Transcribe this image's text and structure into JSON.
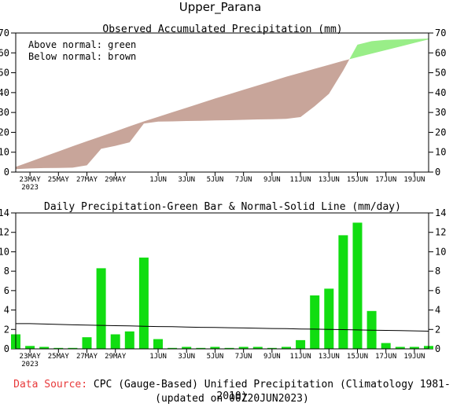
{
  "title": "Upper_Parana",
  "colors": {
    "above_normal": "#99ee88",
    "below_normal": "#c8a59a",
    "bar": "#11dd11",
    "source_label": "#e8393a"
  },
  "chart_data": [
    {
      "type": "area",
      "title": "Observed Accumulated Precipitation (mm)",
      "legend": [
        "Above normal: green",
        "Below normal: brown"
      ],
      "legend_position": "top-left",
      "x_ticks": [
        "23MAY",
        "25MAY",
        "27MAY",
        "29MAY",
        "1JUN",
        "3JUN",
        "5JUN",
        "7JUN",
        "9JUN",
        "11JUN",
        "13JUN",
        "15JUN",
        "17JUN",
        "19JUN"
      ],
      "x_tick_year": "2023",
      "ylim": [
        0,
        70
      ],
      "y_ticks": [
        0,
        10,
        20,
        30,
        40,
        50,
        60,
        70
      ],
      "dates": [
        "22MAY",
        "23MAY",
        "24MAY",
        "25MAY",
        "26MAY",
        "27MAY",
        "28MAY",
        "29MAY",
        "30MAY",
        "31MAY",
        "1JUN",
        "2JUN",
        "3JUN",
        "4JUN",
        "5JUN",
        "6JUN",
        "7JUN",
        "8JUN",
        "9JUN",
        "10JUN",
        "11JUN",
        "12JUN",
        "13JUN",
        "14JUN",
        "15JUN",
        "16JUN",
        "17JUN",
        "18JUN",
        "19JUN",
        "20JUN"
      ],
      "series": [
        {
          "name": "Observed",
          "values": [
            1.5,
            1.8,
            2.0,
            2.1,
            2.2,
            3.4,
            11.7,
            13.2,
            15.0,
            24.4,
            25.4,
            25.5,
            25.7,
            25.8,
            26.0,
            26.1,
            26.3,
            26.5,
            26.6,
            26.8,
            27.7,
            33.2,
            39.4,
            51.1,
            64.1,
            65.9,
            66.5,
            66.7,
            66.9,
            67.2
          ]
        },
        {
          "name": "Normal",
          "values": [
            2.6,
            5.2,
            7.8,
            10.4,
            13.0,
            15.5,
            18.0,
            20.5,
            23.0,
            25.5,
            27.8,
            30.1,
            32.4,
            34.7,
            37.0,
            39.2,
            41.4,
            43.6,
            45.8,
            48.0,
            50.0,
            52.0,
            54.0,
            56.0,
            57.8,
            59.6,
            61.4,
            63.2,
            65.0,
            66.8
          ]
        }
      ]
    },
    {
      "type": "bar",
      "title": "Daily Precipitation-Green Bar & Normal-Solid Line (mm/day)",
      "x_ticks": [
        "23MAY",
        "25MAY",
        "27MAY",
        "29MAY",
        "1JUN",
        "3JUN",
        "5JUN",
        "7JUN",
        "9JUN",
        "11JUN",
        "13JUN",
        "15JUN",
        "17JUN",
        "19JUN"
      ],
      "x_tick_year": "2023",
      "ylim": [
        0,
        14
      ],
      "y_ticks": [
        0,
        2,
        4,
        6,
        8,
        10,
        12,
        14
      ],
      "dates": [
        "22MAY",
        "23MAY",
        "24MAY",
        "25MAY",
        "26MAY",
        "27MAY",
        "28MAY",
        "29MAY",
        "30MAY",
        "31MAY",
        "1JUN",
        "2JUN",
        "3JUN",
        "4JUN",
        "5JUN",
        "6JUN",
        "7JUN",
        "8JUN",
        "9JUN",
        "10JUN",
        "11JUN",
        "12JUN",
        "13JUN",
        "14JUN",
        "15JUN",
        "16JUN",
        "17JUN",
        "18JUN",
        "19JUN",
        "20JUN"
      ],
      "series": [
        {
          "name": "Daily Precipitation",
          "values": [
            1.5,
            0.3,
            0.2,
            0.1,
            0.1,
            1.2,
            8.3,
            1.5,
            1.8,
            9.4,
            1.0,
            0.1,
            0.2,
            0.1,
            0.2,
            0.1,
            0.2,
            0.2,
            0.1,
            0.2,
            0.9,
            5.5,
            6.2,
            11.7,
            13.0,
            3.9,
            0.6,
            0.2,
            0.2,
            0.3
          ]
        },
        {
          "name": "Normal",
          "values": [
            2.6,
            2.6,
            2.56,
            2.52,
            2.48,
            2.45,
            2.42,
            2.39,
            2.36,
            2.33,
            2.3,
            2.28,
            2.25,
            2.22,
            2.2,
            2.18,
            2.15,
            2.12,
            2.1,
            2.08,
            2.05,
            2.03,
            2.0,
            1.98,
            1.95,
            1.92,
            1.9,
            1.88,
            1.85,
            1.82
          ]
        }
      ]
    }
  ],
  "footer": {
    "source_label": "Data Source:",
    "source_text": "CPC (Gauge-Based) Unified Precipitation (Climatology 1981-2010)",
    "updated": "(updated on 00Z20JUN2023)"
  }
}
